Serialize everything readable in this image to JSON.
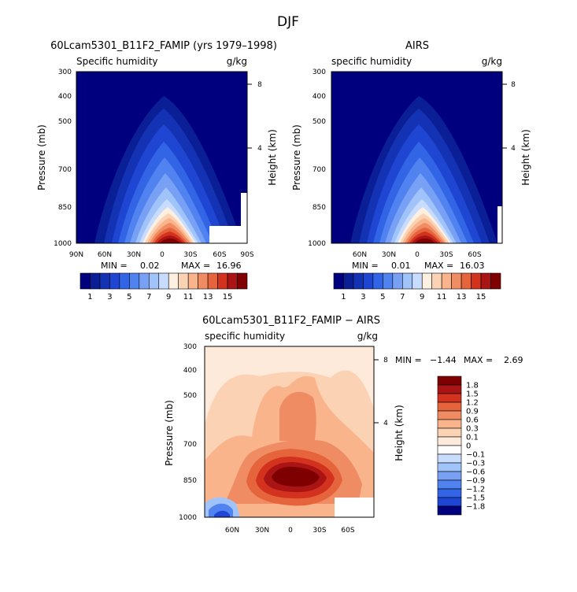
{
  "page": {
    "title": "DJF"
  },
  "chart_data": [
    {
      "type": "heatmap",
      "id": "model",
      "title": "60Lcam5301_B11F2_FAMIP (yrs 1979–1998)",
      "left_label": "Specific humidity",
      "right_label": "g/kg",
      "ylabel": "Pressure (mb)",
      "ylabel_right": "Height (km)",
      "yticks": [
        "300",
        "400",
        "500",
        "700",
        "850",
        "1000"
      ],
      "xticks": [
        "90N",
        "60N",
        "30N",
        "0",
        "30S",
        "60S",
        "90S"
      ],
      "height_ticks": [
        "8",
        "4"
      ],
      "xlim": [
        "90N",
        "90S"
      ],
      "ylim": [
        1000,
        300
      ],
      "min_label": "MIN =",
      "min_value": "0.02",
      "max_label": "MAX =",
      "max_value": "16.96",
      "colorbar": {
        "ticks": [
          "1",
          "3",
          "5",
          "7",
          "9",
          "11",
          "13",
          "15"
        ],
        "colors": [
          "#00007f",
          "#0a1e96",
          "#1432b4",
          "#1e46d2",
          "#3264e6",
          "#5082f0",
          "#78a0f5",
          "#a0c3fa",
          "#c8dcff",
          "#fdf0e0",
          "#fcd2b4",
          "#fab48c",
          "#f08c64",
          "#e6643c",
          "#d2321e",
          "#aa1414",
          "#7f0000"
        ]
      }
    },
    {
      "type": "heatmap",
      "id": "obs",
      "title": "AIRS",
      "left_label": "specific humidity",
      "right_label": "g/kg",
      "ylabel": "Pressure (mb)",
      "ylabel_right": "Height (km)",
      "yticks": [
        "300",
        "400",
        "500",
        "700",
        "850",
        "1000"
      ],
      "xticks": [
        "60N",
        "30N",
        "0",
        "30S",
        "60S"
      ],
      "height_ticks": [
        "8",
        "4"
      ],
      "ylim": [
        1000,
        300
      ],
      "min_label": "MIN =",
      "min_value": "0.01",
      "max_label": "MAX =",
      "max_value": "16.03",
      "colorbar": {
        "ticks": [
          "1",
          "3",
          "5",
          "7",
          "9",
          "11",
          "13",
          "15"
        ],
        "colors": [
          "#00007f",
          "#0a1e96",
          "#1432b4",
          "#1e46d2",
          "#3264e6",
          "#5082f0",
          "#78a0f5",
          "#a0c3fa",
          "#c8dcff",
          "#fdf0e0",
          "#fcd2b4",
          "#fab48c",
          "#f08c64",
          "#e6643c",
          "#d2321e",
          "#aa1414",
          "#7f0000"
        ]
      }
    },
    {
      "type": "heatmap",
      "id": "diff",
      "title": "60Lcam5301_B11F2_FAMIP − AIRS",
      "left_label": "specific humidity",
      "right_label": "g/kg",
      "ylabel": "Pressure (mb)",
      "ylabel_right": "Height (km)",
      "yticks": [
        "300",
        "400",
        "500",
        "700",
        "850",
        "1000"
      ],
      "xticks": [
        "60N",
        "30N",
        "0",
        "30S",
        "60S"
      ],
      "height_ticks": [
        "8",
        "4"
      ],
      "ylim": [
        1000,
        300
      ],
      "min_label": "MIN =",
      "min_value": "−1.44",
      "max_label": "MAX =",
      "max_value": "2.69",
      "colorbar": {
        "ticks": [
          "1.8",
          "1.5",
          "1.2",
          "0.9",
          "0.6",
          "0.3",
          "0.1",
          "0",
          "−0.1",
          "−0.3",
          "−0.6",
          "−0.9",
          "−1.2",
          "−1.5",
          "−1.8"
        ],
        "colors": [
          "#7f0000",
          "#aa1414",
          "#d2321e",
          "#e6643c",
          "#f08c64",
          "#fab48c",
          "#fcd2b4",
          "#fdeadb",
          "#fdfdfd",
          "#c8dcff",
          "#a0c3fa",
          "#78a0f5",
          "#5082f0",
          "#3264e6",
          "#1e46d2",
          "#00007f"
        ]
      }
    }
  ]
}
